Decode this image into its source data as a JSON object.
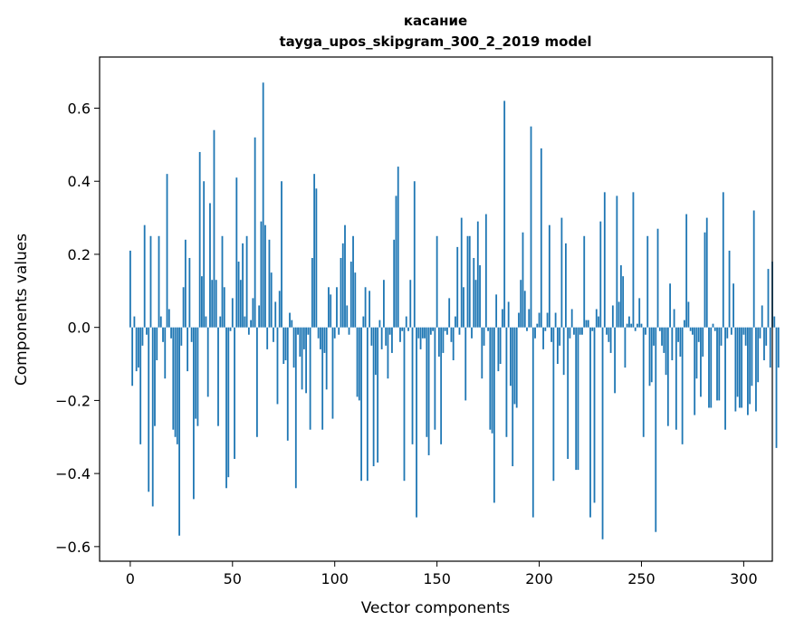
{
  "chart_data": {
    "type": "bar",
    "title": "касание",
    "subtitle": "tayga_upos_skipgram_300_2_2019 model",
    "xlabel": "Vector components",
    "ylabel": "Components values",
    "xlim": [
      -15,
      314
    ],
    "ylim": [
      -0.64,
      0.74
    ],
    "xticks": [
      0,
      50,
      100,
      150,
      200,
      250,
      300
    ],
    "yticks": [
      -0.6,
      -0.4,
      -0.2,
      0.0,
      0.2,
      0.4,
      0.6
    ],
    "grid": false,
    "bar_color": "#1f77b4",
    "values": [
      0.21,
      -0.16,
      0.03,
      -0.12,
      -0.11,
      -0.32,
      -0.05,
      0.28,
      -0.02,
      -0.45,
      0.25,
      -0.49,
      -0.27,
      -0.09,
      0.25,
      0.03,
      -0.04,
      -0.14,
      0.42,
      0.05,
      -0.03,
      -0.28,
      -0.3,
      -0.32,
      -0.57,
      -0.05,
      0.11,
      0.24,
      -0.12,
      0.19,
      -0.04,
      -0.47,
      -0.25,
      -0.27,
      0.48,
      0.14,
      0.4,
      0.03,
      -0.19,
      0.34,
      0.13,
      0.54,
      0.13,
      -0.27,
      0.03,
      0.25,
      0.11,
      -0.44,
      -0.41,
      -0.01,
      0.08,
      -0.36,
      0.41,
      0.18,
      0.13,
      0.23,
      0.03,
      0.25,
      -0.02,
      0.02,
      0.08,
      0.52,
      -0.3,
      0.06,
      0.29,
      0.67,
      0.28,
      -0.06,
      0.24,
      0.15,
      -0.04,
      0.07,
      -0.21,
      0.1,
      0.4,
      -0.1,
      -0.09,
      -0.31,
      0.04,
      0.02,
      -0.11,
      -0.44,
      -0.02,
      -0.08,
      -0.17,
      -0.06,
      -0.18,
      -0.02,
      -0.28,
      0.19,
      0.42,
      0.38,
      -0.03,
      -0.06,
      -0.28,
      -0.07,
      -0.17,
      0.11,
      0.09,
      -0.25,
      -0.03,
      0.11,
      -0.02,
      0.19,
      0.23,
      0.28,
      0.06,
      -0.02,
      0.18,
      0.25,
      0.15,
      -0.19,
      -0.2,
      -0.42,
      0.03,
      0.11,
      -0.42,
      0.1,
      -0.05,
      -0.38,
      -0.13,
      -0.37,
      0.02,
      -0.06,
      0.13,
      -0.05,
      -0.14,
      -0.02,
      -0.07,
      0.24,
      0.36,
      0.44,
      -0.04,
      -0.01,
      -0.42,
      0.03,
      -0.01,
      0.13,
      -0.32,
      0.4,
      -0.52,
      -0.03,
      -0.06,
      -0.03,
      -0.03,
      -0.3,
      -0.35,
      -0.02,
      -0.01,
      -0.28,
      0.25,
      -0.08,
      -0.32,
      -0.07,
      -0.01,
      -0.02,
      0.08,
      -0.04,
      -0.09,
      0.03,
      0.22,
      -0.02,
      0.3,
      0.11,
      -0.2,
      0.25,
      0.25,
      -0.03,
      0.19,
      0.13,
      0.29,
      0.17,
      -0.14,
      -0.05,
      0.31,
      -0.01,
      -0.28,
      -0.29,
      -0.48,
      0.09,
      -0.12,
      -0.1,
      0.05,
      0.62,
      -0.3,
      0.07,
      -0.16,
      -0.38,
      -0.21,
      -0.22,
      0.04,
      0.13,
      0.26,
      0.1,
      -0.01,
      0.05,
      0.55,
      -0.52,
      -0.03,
      0.01,
      0.04,
      0.49,
      -0.06,
      -0.01,
      0.04,
      0.28,
      -0.04,
      -0.42,
      0.04,
      -0.1,
      -0.05,
      0.3,
      -0.13,
      0.23,
      -0.36,
      -0.03,
      0.05,
      -0.02,
      -0.39,
      -0.39,
      -0.02,
      -0.02,
      0.25,
      0.02,
      0.02,
      -0.52,
      -0.01,
      -0.48,
      0.05,
      0.03,
      0.29,
      -0.58,
      0.37,
      -0.02,
      -0.04,
      -0.07,
      0.06,
      -0.18,
      0.36,
      0.07,
      0.17,
      0.14,
      -0.11,
      0.01,
      0.03,
      0.01,
      0.37,
      -0.01,
      0.01,
      0.08,
      0.01,
      -0.3,
      -0.02,
      0.25,
      -0.16,
      -0.15,
      -0.05,
      -0.56,
      0.27,
      -0.01,
      -0.05,
      -0.07,
      -0.13,
      -0.27,
      0.12,
      -0.09,
      0.05,
      -0.28,
      -0.04,
      -0.08,
      -0.32,
      0.02,
      0.31,
      0.07,
      -0.01,
      -0.02,
      -0.24,
      -0.14,
      -0.04,
      -0.19,
      -0.08,
      0.26,
      0.3,
      -0.22,
      -0.22,
      0.01,
      -0.01,
      -0.2,
      -0.2,
      -0.05,
      0.37,
      -0.28,
      -0.03,
      0.21,
      -0.02,
      0.12,
      -0.23,
      -0.19,
      -0.22,
      -0.22,
      -0.02,
      -0.05,
      -0.24,
      -0.21,
      -0.16,
      0.32,
      -0.23,
      -0.15,
      -0.03,
      0.06,
      -0.09,
      -0.05,
      0.16,
      -0.11,
      0.18,
      0.03,
      -0.33,
      -0.11
    ]
  }
}
